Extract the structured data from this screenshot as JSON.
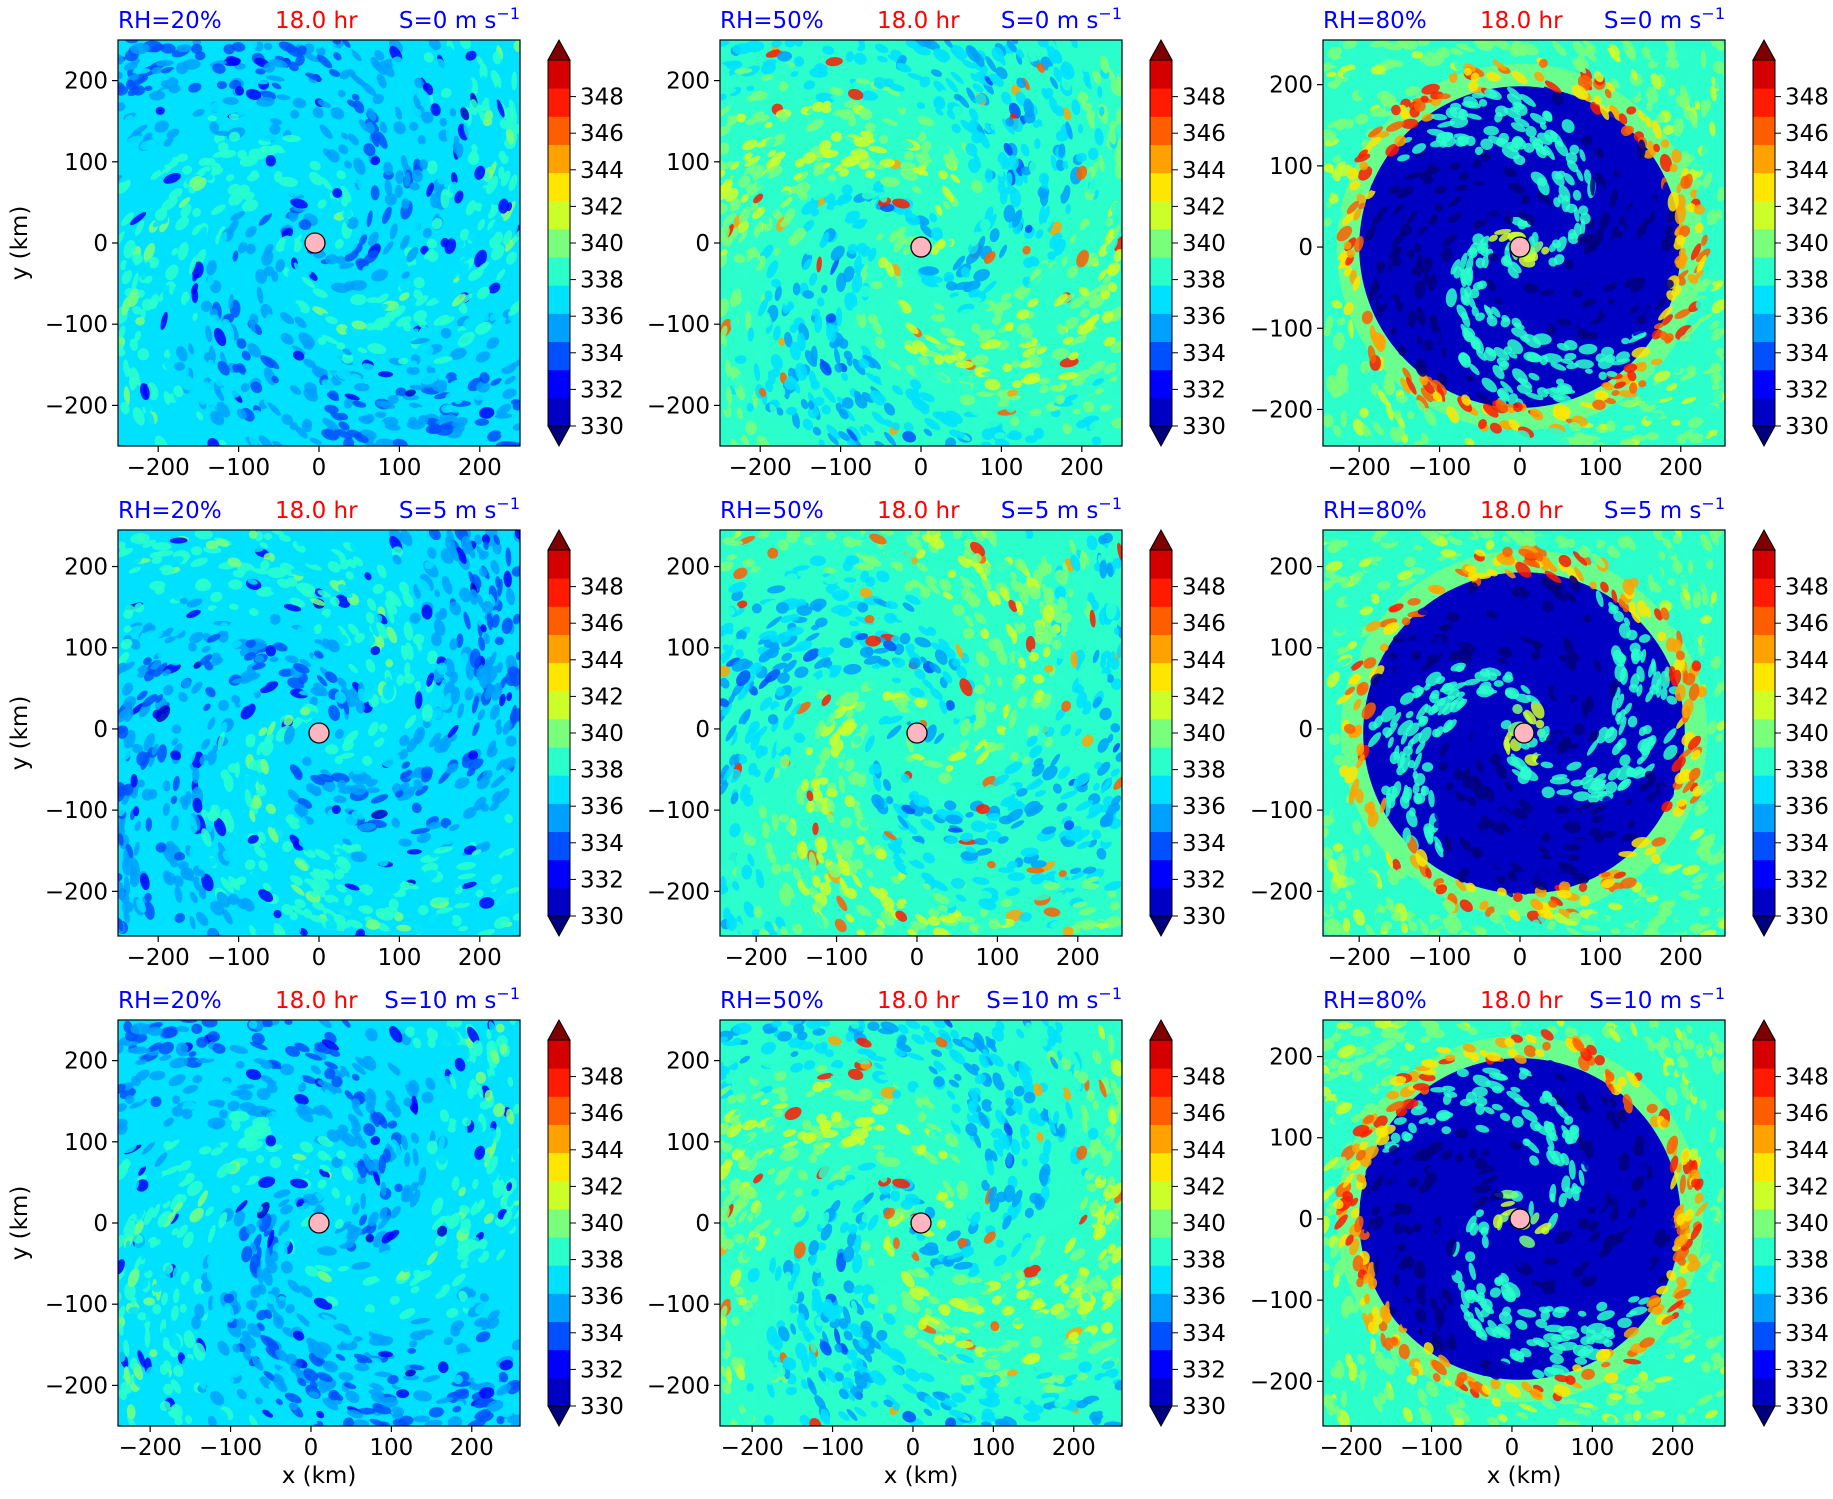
{
  "colors": {
    "title_left": "#0000ff",
    "title_center": "#ff0000",
    "title_right": "#0000ff",
    "center_marker": "#ffb6c1",
    "colormap": [
      "#00007f",
      "#0000c4",
      "#0000ff",
      "#0050ff",
      "#00a0ff",
      "#00e0ff",
      "#2affcc",
      "#7aff7c",
      "#ccff2a",
      "#ffe600",
      "#ffa200",
      "#ff5e00",
      "#ff1a00",
      "#d40000",
      "#7f0000"
    ]
  },
  "chart_data": [
    {
      "type": "heatmap",
      "title_left": "RH=20%",
      "title_center": "18.0 hr",
      "title_right": "S=0 m s",
      "title_right_sup": "−1",
      "xlabel": "",
      "ylabel": "y (km)",
      "x_ticks": [
        "−200",
        "−100",
        "0",
        "100",
        "200"
      ],
      "y_ticks": [
        "200",
        "100",
        "0",
        "−100",
        "−200"
      ],
      "xlim": [
        -250,
        250
      ],
      "ylim": [
        -250,
        250
      ],
      "center": [
        -5,
        0
      ],
      "colorbar": {
        "ticks": [
          "348",
          "346",
          "344",
          "342",
          "340",
          "338",
          "336",
          "334",
          "332",
          "330"
        ],
        "min": 330,
        "max": 350,
        "extend": "both"
      }
    },
    {
      "type": "heatmap",
      "title_left": "RH=50%",
      "title_center": "18.0 hr",
      "title_right": "S=0 m s",
      "title_right_sup": "−1",
      "xlabel": "",
      "ylabel": "",
      "x_ticks": [
        "−200",
        "−100",
        "0",
        "100",
        "200"
      ],
      "y_ticks": [
        "200",
        "100",
        "0",
        "−100",
        "−200"
      ],
      "xlim": [
        -250,
        250
      ],
      "ylim": [
        -250,
        250
      ],
      "center": [
        0,
        -5
      ],
      "colorbar": {
        "ticks": [
          "348",
          "346",
          "344",
          "342",
          "340",
          "338",
          "336",
          "334",
          "332",
          "330"
        ],
        "min": 330,
        "max": 350,
        "extend": "both"
      }
    },
    {
      "type": "heatmap",
      "title_left": "RH=80%",
      "title_center": "18.0 hr",
      "title_right": "S=0 m s",
      "title_right_sup": "−1",
      "xlabel": "",
      "ylabel": "",
      "x_ticks": [
        "−200",
        "−100",
        "0",
        "100",
        "200"
      ],
      "y_ticks": [
        "200",
        "100",
        "0",
        "−100",
        "−200"
      ],
      "xlim": [
        -245,
        255
      ],
      "ylim": [
        -245,
        255
      ],
      "center": [
        0,
        0
      ],
      "colorbar": {
        "ticks": [
          "348",
          "346",
          "344",
          "342",
          "340",
          "338",
          "336",
          "334",
          "332",
          "330"
        ],
        "min": 330,
        "max": 350,
        "extend": "both"
      }
    },
    {
      "type": "heatmap",
      "title_left": "RH=20%",
      "title_center": "18.0 hr",
      "title_right": "S=5 m s",
      "title_right_sup": "−1",
      "xlabel": "",
      "ylabel": "y (km)",
      "x_ticks": [
        "−200",
        "−100",
        "0",
        "100",
        "200"
      ],
      "y_ticks": [
        "200",
        "100",
        "0",
        "−100",
        "−200"
      ],
      "xlim": [
        -250,
        250
      ],
      "ylim": [
        -255,
        245
      ],
      "center": [
        0,
        -5
      ],
      "colorbar": {
        "ticks": [
          "348",
          "346",
          "344",
          "342",
          "340",
          "338",
          "336",
          "334",
          "332",
          "330"
        ],
        "min": 330,
        "max": 350,
        "extend": "both"
      }
    },
    {
      "type": "heatmap",
      "title_left": "RH=50%",
      "title_center": "18.0 hr",
      "title_right": "S=5 m s",
      "title_right_sup": "−1",
      "xlabel": "",
      "ylabel": "",
      "x_ticks": [
        "−200",
        "−100",
        "0",
        "100",
        "200"
      ],
      "y_ticks": [
        "200",
        "100",
        "0",
        "−100",
        "−200"
      ],
      "xlim": [
        -245,
        255
      ],
      "ylim": [
        -255,
        245
      ],
      "center": [
        0,
        -5
      ],
      "colorbar": {
        "ticks": [
          "348",
          "346",
          "344",
          "342",
          "340",
          "338",
          "336",
          "334",
          "332",
          "330"
        ],
        "min": 330,
        "max": 350,
        "extend": "both"
      }
    },
    {
      "type": "heatmap",
      "title_left": "RH=80%",
      "title_center": "18.0 hr",
      "title_right": "S=5 m s",
      "title_right_sup": "−1",
      "xlabel": "",
      "ylabel": "",
      "x_ticks": [
        "−200",
        "−100",
        "0",
        "100",
        "200"
      ],
      "y_ticks": [
        "200",
        "100",
        "0",
        "−100",
        "−200"
      ],
      "xlim": [
        -245,
        255
      ],
      "ylim": [
        -255,
        245
      ],
      "center": [
        5,
        -5
      ],
      "colorbar": {
        "ticks": [
          "348",
          "346",
          "344",
          "342",
          "340",
          "338",
          "336",
          "334",
          "332",
          "330"
        ],
        "min": 330,
        "max": 350,
        "extend": "both"
      }
    },
    {
      "type": "heatmap",
      "title_left": "RH=20%",
      "title_center": "18.0 hr",
      "title_right": "S=10 m s",
      "title_right_sup": "−1",
      "xlabel": "x (km)",
      "ylabel": "y (km)",
      "x_ticks": [
        "−200",
        "−100",
        "0",
        "100",
        "200"
      ],
      "y_ticks": [
        "200",
        "100",
        "0",
        "−100",
        "−200"
      ],
      "xlim": [
        -240,
        260
      ],
      "ylim": [
        -250,
        250
      ],
      "center": [
        10,
        0
      ],
      "colorbar": {
        "ticks": [
          "348",
          "346",
          "344",
          "342",
          "340",
          "338",
          "336",
          "334",
          "332",
          "330"
        ],
        "min": 330,
        "max": 350,
        "extend": "both"
      }
    },
    {
      "type": "heatmap",
      "title_left": "RH=50%",
      "title_center": "18.0 hr",
      "title_right": "S=10 m s",
      "title_right_sup": "−1",
      "xlabel": "x (km)",
      "ylabel": "",
      "x_ticks": [
        "−200",
        "−100",
        "0",
        "100",
        "200"
      ],
      "y_ticks": [
        "200",
        "100",
        "0",
        "−100",
        "−200"
      ],
      "xlim": [
        -240,
        260
      ],
      "ylim": [
        -250,
        250
      ],
      "center": [
        10,
        0
      ],
      "colorbar": {
        "ticks": [
          "348",
          "346",
          "344",
          "342",
          "340",
          "338",
          "336",
          "334",
          "332",
          "330"
        ],
        "min": 330,
        "max": 350,
        "extend": "both"
      }
    },
    {
      "type": "heatmap",
      "title_left": "RH=80%",
      "title_center": "18.0 hr",
      "title_right": "S=10 m s",
      "title_right_sup": "−1",
      "xlabel": "x (km)",
      "ylabel": "",
      "x_ticks": [
        "−200",
        "−100",
        "0",
        "100",
        "200"
      ],
      "y_ticks": [
        "200",
        "100",
        "0",
        "−100",
        "−200"
      ],
      "xlim": [
        -235,
        265
      ],
      "ylim": [
        -255,
        245
      ],
      "center": [
        10,
        0
      ],
      "colorbar": {
        "ticks": [
          "348",
          "346",
          "344",
          "342",
          "340",
          "338",
          "336",
          "334",
          "332",
          "330"
        ],
        "min": 330,
        "max": 350,
        "extend": "both"
      }
    }
  ]
}
